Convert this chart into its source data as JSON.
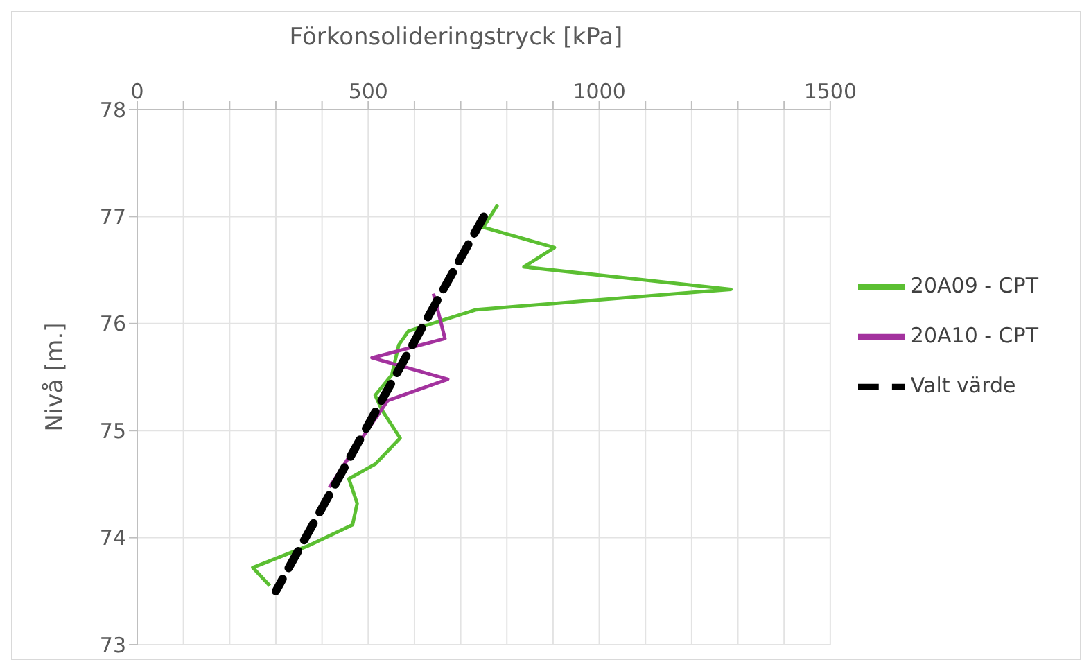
{
  "chart_data": {
    "type": "line",
    "xlabel": "Förkonsolideringstryck [kPa]",
    "ylabel": "Nivå [m.]",
    "xlim": [
      0,
      1500
    ],
    "xticks": [
      0,
      {
        "value": 100,
        "label": null
      },
      {
        "value": 200,
        "label": null
      },
      {
        "value": 300,
        "label": null
      },
      {
        "value": 400,
        "label": null
      },
      500,
      {
        "value": 600,
        "label": null
      },
      {
        "value": 700,
        "label": null
      },
      {
        "value": 800,
        "label": null
      },
      {
        "value": 900,
        "label": null
      },
      1000,
      {
        "value": 1100,
        "label": null
      },
      {
        "value": 1200,
        "label": null
      },
      {
        "value": 1300,
        "label": null
      },
      {
        "value": 1400,
        "label": null
      },
      1500
    ],
    "ylim": [
      73,
      78
    ],
    "yticks": [
      73,
      74,
      75,
      76,
      77,
      78
    ],
    "grid": true,
    "legend": "right",
    "marker": "none",
    "series": [
      {
        "name": "20A09 - CPT",
        "color": "#5bbf32",
        "line_style": "solid",
        "x": [
          780,
          749,
          903,
          837,
          1285,
          734,
          660,
          587,
          566,
          551,
          515,
          530,
          569,
          516,
          458,
          476,
          466,
          368,
          250,
          287
        ],
        "values": [
          77.11,
          76.9,
          76.71,
          76.53,
          76.32,
          76.13,
          76.03,
          75.93,
          75.8,
          75.52,
          75.33,
          75.19,
          74.93,
          74.69,
          74.55,
          74.32,
          74.12,
          73.92,
          73.72,
          73.55
        ]
      },
      {
        "name": "20A10 - CPT",
        "color": "#a3329e",
        "line_style": "solid",
        "x": [
          641,
          648,
          666,
          508,
          672,
          542,
          464,
          416
        ],
        "values": [
          76.28,
          76.17,
          75.86,
          75.68,
          75.48,
          75.28,
          74.79,
          74.47
        ]
      },
      {
        "name": "Valt värde",
        "color": "#000000",
        "line_style": "dashed",
        "x": [
          750,
          300
        ],
        "values": [
          77,
          73.5
        ]
      }
    ]
  }
}
